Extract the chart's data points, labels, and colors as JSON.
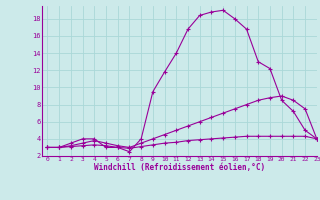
{
  "xlabel": "Windchill (Refroidissement éolien,°C)",
  "bg_color": "#cceaea",
  "line_color": "#990099",
  "grid_color": "#aad8d8",
  "series": [
    [
      3,
      3,
      3.5,
      4,
      4,
      3,
      3,
      2.5,
      4,
      9.5,
      11.8,
      14,
      16.8,
      18.4,
      18.8,
      19,
      18,
      16.8,
      13,
      12.2,
      8.5,
      7.2,
      5,
      4
    ],
    [
      3,
      3,
      3.2,
      3.5,
      3.8,
      3.5,
      3.2,
      3.0,
      3.5,
      4.0,
      4.5,
      5.0,
      5.5,
      6.0,
      6.5,
      7.0,
      7.5,
      8.0,
      8.5,
      8.8,
      9.0,
      8.5,
      7.5,
      4.0
    ],
    [
      3,
      3,
      3.1,
      3.2,
      3.3,
      3.2,
      3.0,
      2.9,
      3.1,
      3.3,
      3.5,
      3.6,
      3.8,
      3.9,
      4.0,
      4.1,
      4.2,
      4.3,
      4.3,
      4.3,
      4.3,
      4.3,
      4.3,
      4.0
    ]
  ],
  "xlim": [
    -0.5,
    23
  ],
  "ylim": [
    2,
    19.5
  ],
  "xticks": [
    0,
    1,
    2,
    3,
    4,
    5,
    6,
    7,
    8,
    9,
    10,
    11,
    12,
    13,
    14,
    15,
    16,
    17,
    18,
    19,
    20,
    21,
    22,
    23
  ],
  "yticks": [
    2,
    4,
    6,
    8,
    10,
    12,
    14,
    16,
    18
  ]
}
